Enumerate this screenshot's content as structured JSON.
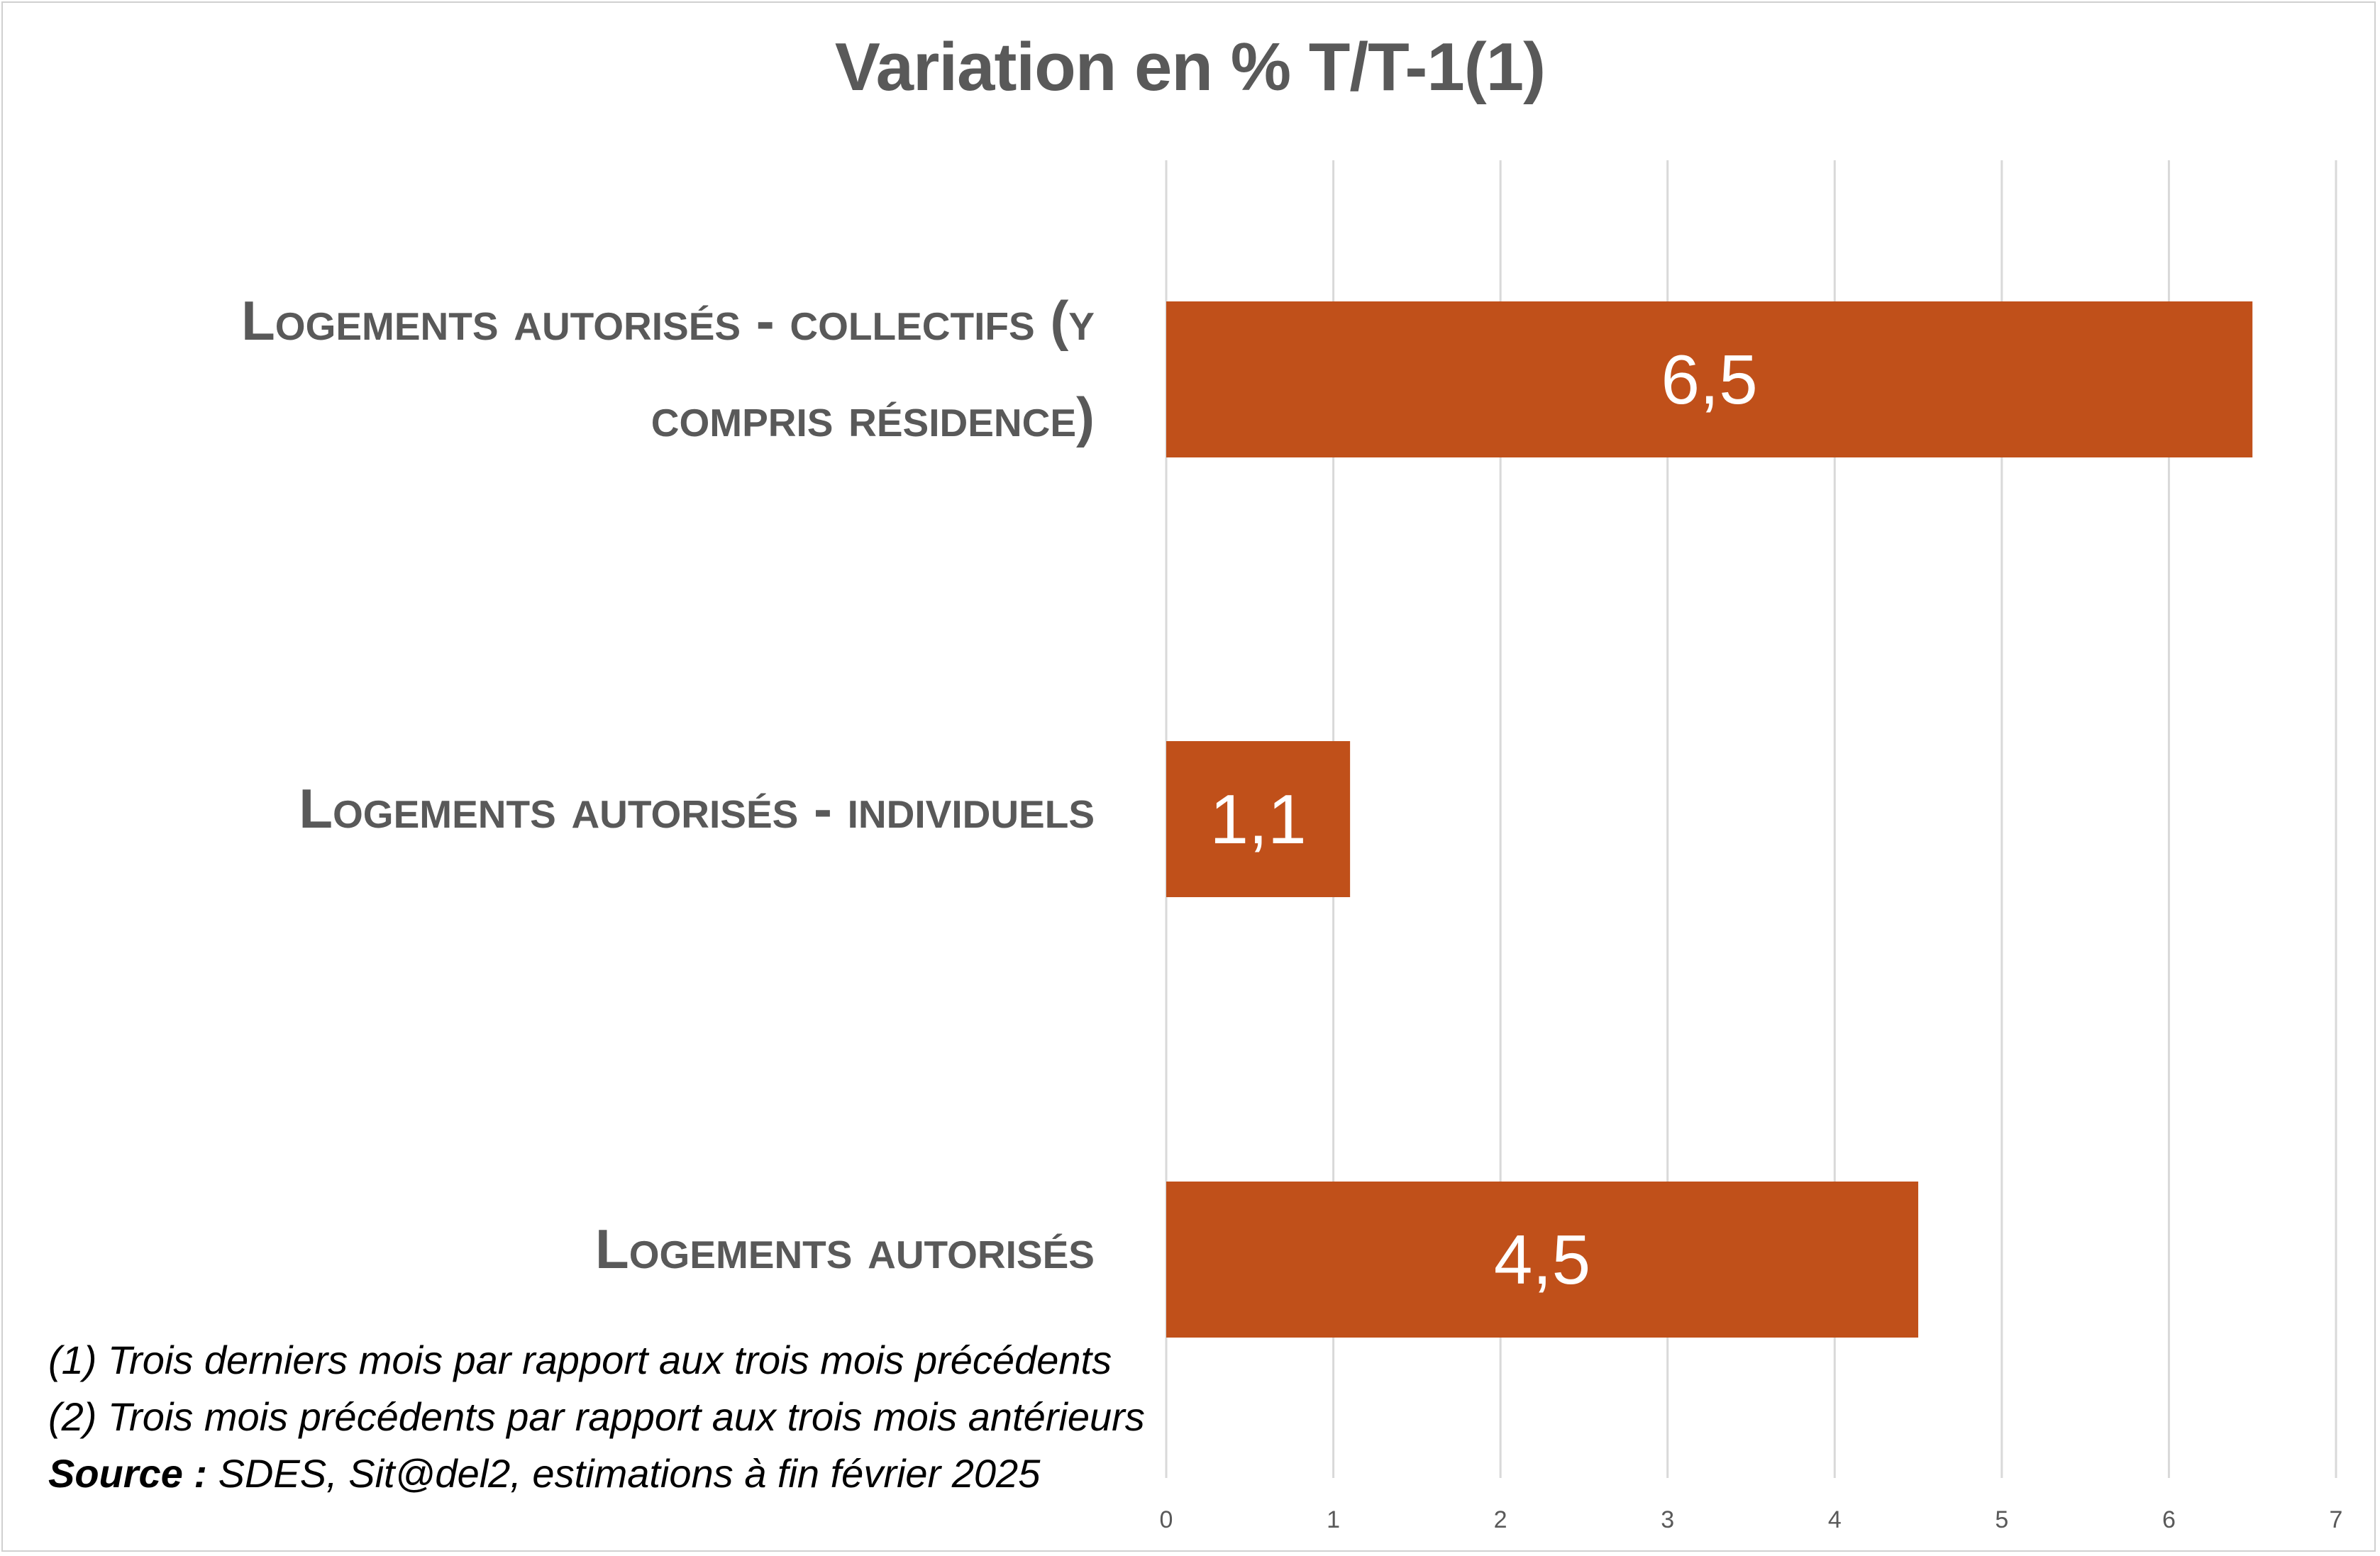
{
  "chart_data": {
    "type": "bar",
    "orientation": "horizontal",
    "title": "Variation en % T/T-1(1)",
    "categories": [
      "Logements autorisés - collectifs (y compris résidence)",
      "Logements autorisés - individuels",
      "Logements autorisés"
    ],
    "category_label_lines": [
      [
        "Logements autorisés - collectifs (y",
        "compris résidence)"
      ],
      [
        "Logements autorisés - individuels"
      ],
      [
        "Logements autorisés"
      ]
    ],
    "values": [
      6.5,
      1.1,
      4.5
    ],
    "data_labels": [
      "6,5",
      "1,1",
      "4,5"
    ],
    "xlim": [
      0,
      7
    ],
    "xticks": [
      "0",
      "1",
      "2",
      "3",
      "4",
      "5",
      "6",
      "7"
    ],
    "xlabel": "",
    "ylabel": "",
    "grid": true,
    "legend": "none",
    "bar_color": "#C0501A",
    "gridline_color": "#d9d9d9",
    "label_color": "#595959"
  },
  "footnotes": {
    "note1": "(1) Trois derniers mois par rapport aux trois mois précédents",
    "note2": "(2) Trois mois précédents par rapport aux trois mois antérieurs",
    "source_label": "Source :",
    "source_text": " SDES, Sit@del2, estimations à fin février 2025"
  }
}
